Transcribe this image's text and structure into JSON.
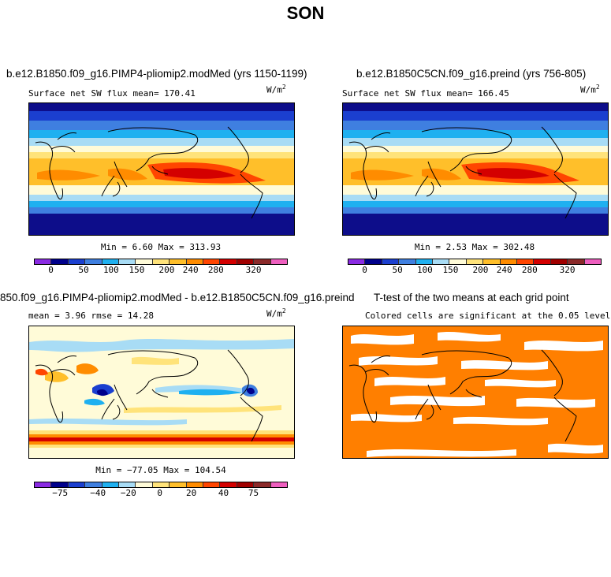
{
  "season": "SON",
  "units_base": "W/m",
  "units_exp": "2",
  "panel1": {
    "title": "b.e12.B1850.f09_g16.PIMP4-pliomip2.modMed (yrs 1150-1199)",
    "subtitle": "Surface net SW flux mean= 170.41",
    "minmax": "Min =   6.60 Max = 313.93"
  },
  "panel2": {
    "title": "b.e12.B1850C5CN.f09_g16.preind (yrs 756-805)",
    "subtitle": "Surface net SW flux mean= 166.45",
    "minmax": "Min =   2.53 Max = 302.48"
  },
  "panel3": {
    "title": "850.f09_g16.PIMP4-pliomip2.modMed - b.e12.B1850C5CN.f09_g16.preind",
    "stats": "mean =    3.96     rmse =  14.28",
    "minmax": "Min = −77.05 Max = 104.54"
  },
  "panel4": {
    "title": "T-test of the two means at each grid point",
    "subtitle": "Colored cells are significant at the 0.05 level"
  },
  "colorbar_abs": {
    "colors": [
      "#8a2be2",
      "#00008b",
      "#1b3fcf",
      "#3f7fe0",
      "#1fb0f0",
      "#a8dcf5",
      "#fffbd8",
      "#ffe37a",
      "#ffbf2a",
      "#ff8c00",
      "#ff4500",
      "#d40000",
      "#a00000",
      "#8b2a2a",
      "#ee5fbf"
    ],
    "tick_labels": [
      "0",
      "50",
      "100",
      "150",
      "200",
      "240",
      "280",
      "320"
    ]
  },
  "colorbar_diff": {
    "colors": [
      "#8a2be2",
      "#00008b",
      "#1b3fcf",
      "#3f7fe0",
      "#1fb0f0",
      "#a8dcf5",
      "#fffbd8",
      "#ffe37a",
      "#ffbf2a",
      "#ff8c00",
      "#ff4500",
      "#d40000",
      "#a00000",
      "#8b2a2a",
      "#ee5fbf"
    ],
    "tick_labels": [
      "−75",
      "−40",
      "−20",
      "0",
      "20",
      "40",
      "75"
    ]
  },
  "ttest_color": "#ff7f00"
}
